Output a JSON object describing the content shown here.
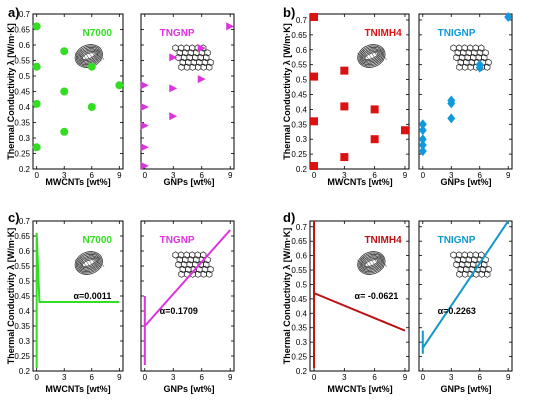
{
  "colors": {
    "N7000": "#33dd22",
    "TNGNP": "#dd33dd",
    "TNIMH4": "#dd1111",
    "TNIGNP": "#1199dd"
  },
  "chart_data": [
    {
      "panel": "a)",
      "type": "scatter",
      "ylabel": "Thermal Conductivity λ [W/m·K]",
      "yticks": [
        0.2,
        0.25,
        0.3,
        0.35,
        0.4,
        0.45,
        0.5,
        0.55,
        0.6,
        0.65,
        0.7
      ],
      "ylim": [
        0.2,
        0.7
      ],
      "subplots": [
        {
          "name": "N7000",
          "label": "N7000",
          "marker": "circle",
          "color": "#33dd22",
          "xlabel": "MWCNTs [wt%]",
          "xticks": [
            0,
            3,
            6,
            9
          ],
          "xlim": [
            -0.4,
            9.4
          ],
          "x": [
            0,
            0,
            0,
            0,
            3,
            3,
            3,
            6,
            6,
            9
          ],
          "y": [
            0.66,
            0.53,
            0.41,
            0.27,
            0.58,
            0.45,
            0.32,
            0.53,
            0.4,
            0.47
          ]
        },
        {
          "name": "TNGNP",
          "label": "TNGNP",
          "marker": "triangle",
          "color": "#dd33dd",
          "xlabel": "GNPs [wt%]",
          "xticks": [
            0,
            3,
            6,
            9
          ],
          "xlim": [
            -0.4,
            9.4
          ],
          "x": [
            0,
            0,
            0,
            0,
            0,
            3,
            3,
            3,
            6,
            6,
            9
          ],
          "y": [
            0.47,
            0.4,
            0.34,
            0.27,
            0.21,
            0.56,
            0.46,
            0.37,
            0.59,
            0.49,
            0.66
          ]
        }
      ]
    },
    {
      "panel": "b)",
      "type": "scatter",
      "ylabel": "Thermal Conductivity λ [W/m·K]",
      "yticks": [
        0.2,
        0.25,
        0.3,
        0.35,
        0.4,
        0.45,
        0.5,
        0.55,
        0.6,
        0.65,
        0.7
      ],
      "ylim": [
        0.2,
        0.72
      ],
      "subplots": [
        {
          "name": "TNIMH4",
          "label": "TNIMH4",
          "marker": "square",
          "color": "#dd1111",
          "xlabel": "MWCNTs [wt%]",
          "xticks": [
            0,
            3,
            6,
            9
          ],
          "xlim": [
            -0.4,
            9.4
          ],
          "x": [
            0,
            0,
            0,
            0,
            3,
            3,
            3,
            6,
            6,
            9
          ],
          "y": [
            0.71,
            0.51,
            0.36,
            0.21,
            0.53,
            0.41,
            0.24,
            0.4,
            0.3,
            0.33
          ]
        },
        {
          "name": "TNIGNP",
          "label": "TNIGNP",
          "marker": "diamond",
          "color": "#1199dd",
          "xlabel": "GNPs [wt%]",
          "xticks": [
            0,
            3,
            6,
            9
          ],
          "xlim": [
            -0.4,
            9.4
          ],
          "x": [
            0,
            0,
            0,
            0,
            0,
            3,
            3,
            3,
            6,
            6,
            9
          ],
          "y": [
            0.35,
            0.33,
            0.3,
            0.28,
            0.26,
            0.43,
            0.42,
            0.37,
            0.55,
            0.54,
            0.71
          ]
        }
      ]
    },
    {
      "panel": "c)",
      "type": "line",
      "ylabel": "Thermal Conductivity λ [W/m·K]",
      "yticks": [
        0.2,
        0.25,
        0.3,
        0.35,
        0.4,
        0.45,
        0.5,
        0.55,
        0.6,
        0.65,
        0.7
      ],
      "ylim": [
        0.2,
        0.7
      ],
      "subplots": [
        {
          "name": "N7000",
          "label": "N7000",
          "color": "#33dd22",
          "alpha_text": "α=0.0011",
          "xlabel": "MWCNTs [wt%]",
          "xticks": [
            0,
            3,
            6,
            9
          ],
          "xlim": [
            -0.4,
            9.4
          ],
          "line_x": [
            0,
            0,
            0.3,
            9
          ],
          "line_y": [
            0.21,
            0.66,
            0.43,
            0.43
          ]
        },
        {
          "name": "TNGNP",
          "label": "TNGNP",
          "color": "#dd33dd",
          "alpha_text": "α=0.1709",
          "xlabel": "GNPs [wt%]",
          "xticks": [
            0,
            3,
            6,
            9
          ],
          "xlim": [
            -0.4,
            9.4
          ],
          "line_x": [
            0,
            0,
            0,
            9
          ],
          "line_y": [
            0.22,
            0.45,
            0.35,
            0.67
          ]
        }
      ]
    },
    {
      "panel": "d)",
      "type": "line",
      "ylabel": "Thermal Conductivity λ [W/m·K]",
      "yticks": [
        0.2,
        0.25,
        0.3,
        0.35,
        0.4,
        0.45,
        0.5,
        0.55,
        0.6,
        0.65,
        0.7
      ],
      "ylim": [
        0.2,
        0.72
      ],
      "subplots": [
        {
          "name": "TNIMH4",
          "label": "TNIMH4",
          "color": "#bb1111",
          "alpha_text": "α= -0.0621",
          "xlabel": "MWCNTs [wt%]",
          "xticks": [
            0,
            3,
            6,
            9
          ],
          "xlim": [
            -0.4,
            9.4
          ],
          "line_x": [
            0,
            0,
            0,
            9
          ],
          "line_y": [
            0.21,
            0.72,
            0.47,
            0.34
          ]
        },
        {
          "name": "TNIGNP",
          "label": "TNIGNP",
          "color": "#1199cc",
          "alpha_text": "α=0.2263",
          "xlabel": "GNPs [wt%]",
          "xticks": [
            0,
            3,
            6,
            9
          ],
          "xlim": [
            -0.4,
            9.4
          ],
          "line_x": [
            0,
            0,
            0,
            9
          ],
          "line_y": [
            0.26,
            0.34,
            0.28,
            0.72
          ]
        }
      ]
    }
  ]
}
